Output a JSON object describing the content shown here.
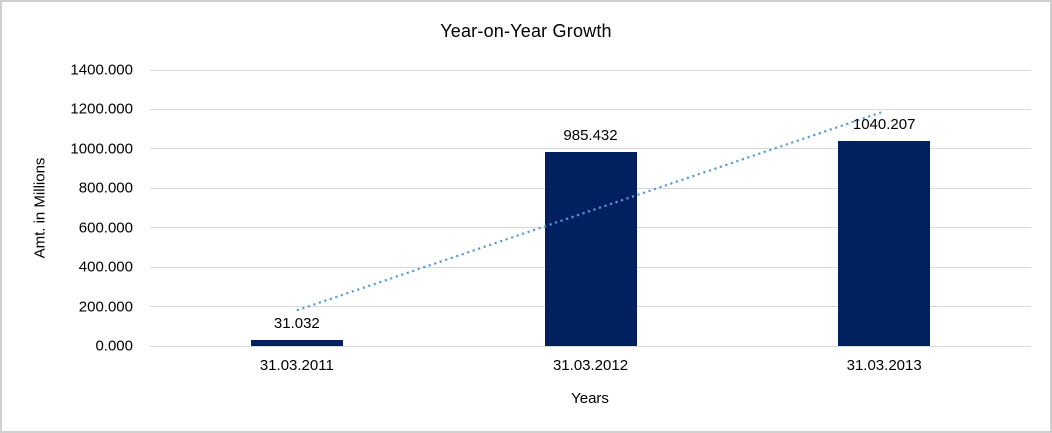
{
  "frame": {
    "background": "#ffffff",
    "border_color": "#cfcfcf"
  },
  "chart_data": {
    "type": "bar",
    "title": "Year-on-Year Growth",
    "xlabel": "Years",
    "ylabel": "Amt. in Millions",
    "categories": [
      "31.03.2011",
      "31.03.2012",
      "31.03.2013"
    ],
    "values": [
      31.032,
      985.432,
      1040.207
    ],
    "data_labels": [
      "31.032",
      "985.432",
      "1040.207"
    ],
    "ylim": [
      0,
      1400
    ],
    "yticks": [
      0,
      200,
      400,
      600,
      800,
      1000,
      1200,
      1400
    ],
    "ytick_labels": [
      "0.000",
      "200.000",
      "400.000",
      "600.000",
      "800.000",
      "1000.000",
      "1200.000",
      "1400.000"
    ],
    "grid": true,
    "legend": "none",
    "bar_color": "#002060",
    "gridline_color": "#d9d9d9",
    "text_color": "#000000",
    "trendline": {
      "type": "linear",
      "style": "dotted",
      "color": "#5b9bd5"
    }
  }
}
